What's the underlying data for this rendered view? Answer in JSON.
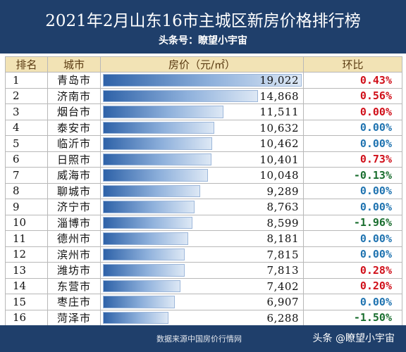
{
  "header": {
    "title": "2021年2月山东16市主城区新房价格排行榜",
    "subtitle": "头条号：瞭望小宇宙"
  },
  "table": {
    "columns": [
      "排名",
      "城市",
      "房价（元/㎡）",
      "环比"
    ],
    "rows": [
      {
        "rank": "1",
        "city": "青岛市",
        "price": "19,022",
        "price_value": 19022,
        "ratio": "0.43%",
        "trend": "pos"
      },
      {
        "rank": "2",
        "city": "济南市",
        "price": "14,868",
        "price_value": 14868,
        "ratio": "0.56%",
        "trend": "pos"
      },
      {
        "rank": "3",
        "city": "烟台市",
        "price": "11,511",
        "price_value": 11511,
        "ratio": "0.00%",
        "trend": "pos"
      },
      {
        "rank": "4",
        "city": "泰安市",
        "price": "10,632",
        "price_value": 10632,
        "ratio": "0.00%",
        "trend": "zero"
      },
      {
        "rank": "5",
        "city": "临沂市",
        "price": "10,462",
        "price_value": 10462,
        "ratio": "0.00%",
        "trend": "zero"
      },
      {
        "rank": "6",
        "city": "日照市",
        "price": "10,401",
        "price_value": 10401,
        "ratio": "0.73%",
        "trend": "pos"
      },
      {
        "rank": "7",
        "city": "威海市",
        "price": "10,048",
        "price_value": 10048,
        "ratio": "-0.13%",
        "trend": "neg"
      },
      {
        "rank": "8",
        "city": "聊城市",
        "price": "9,289",
        "price_value": 9289,
        "ratio": "0.00%",
        "trend": "zero"
      },
      {
        "rank": "9",
        "city": "济宁市",
        "price": "8,763",
        "price_value": 8763,
        "ratio": "0.00%",
        "trend": "zero"
      },
      {
        "rank": "10",
        "city": "淄博市",
        "price": "8,599",
        "price_value": 8599,
        "ratio": "-1.96%",
        "trend": "neg"
      },
      {
        "rank": "11",
        "city": "德州市",
        "price": "8,181",
        "price_value": 8181,
        "ratio": "0.00%",
        "trend": "zero"
      },
      {
        "rank": "12",
        "city": "滨州市",
        "price": "7,815",
        "price_value": 7815,
        "ratio": "0.00%",
        "trend": "zero"
      },
      {
        "rank": "13",
        "city": "潍坊市",
        "price": "7,813",
        "price_value": 7813,
        "ratio": "0.28%",
        "trend": "pos"
      },
      {
        "rank": "14",
        "city": "东营市",
        "price": "7,402",
        "price_value": 7402,
        "ratio": "0.20%",
        "trend": "pos"
      },
      {
        "rank": "15",
        "city": "枣庄市",
        "price": "6,907",
        "price_value": 6907,
        "ratio": "0.00%",
        "trend": "zero"
      },
      {
        "rank": "16",
        "city": "菏泽市",
        "price": "6,288",
        "price_value": 6288,
        "ratio": "-1.50%",
        "trend": "neg"
      }
    ]
  },
  "footer": {
    "source": "数据来源中国房价行情网",
    "watermark": "头条 @瞭望小宇宙"
  },
  "colors": {
    "banner": "#1f3f6b",
    "header_row": "#f2e3b5",
    "positive": "#d0101a",
    "zero": "#1f73b0",
    "negative": "#1a6e2f",
    "bar": "#2e62a8"
  }
}
